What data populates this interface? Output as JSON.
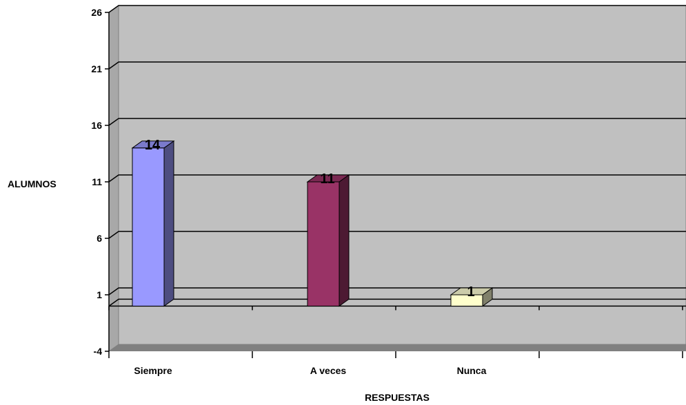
{
  "chart_data": {
    "type": "bar",
    "title": "",
    "xlabel": "RESPUESTAS",
    "ylabel": "ALUMNOS",
    "ylim": [
      -4,
      26
    ],
    "yticks": [
      -4,
      1,
      6,
      11,
      16,
      21,
      26
    ],
    "categories": [
      "Siempre",
      "A veces",
      "Nunca"
    ],
    "values": [
      14,
      11,
      1
    ],
    "data_labels": [
      "14",
      "11",
      "1"
    ],
    "grid": true,
    "legend": "none",
    "three_d": true,
    "colors": {
      "bars_front": [
        "#9999ff",
        "#993366",
        "#ffffcc"
      ],
      "bars_side": [
        "#4d4d80",
        "#4d1a33",
        "#80806b"
      ],
      "bars_top": [
        "#7a7acc",
        "#7a2952",
        "#ccccaa"
      ],
      "wall": "#c0c0c0",
      "floor": "#808080",
      "gridline": "#000000"
    }
  }
}
